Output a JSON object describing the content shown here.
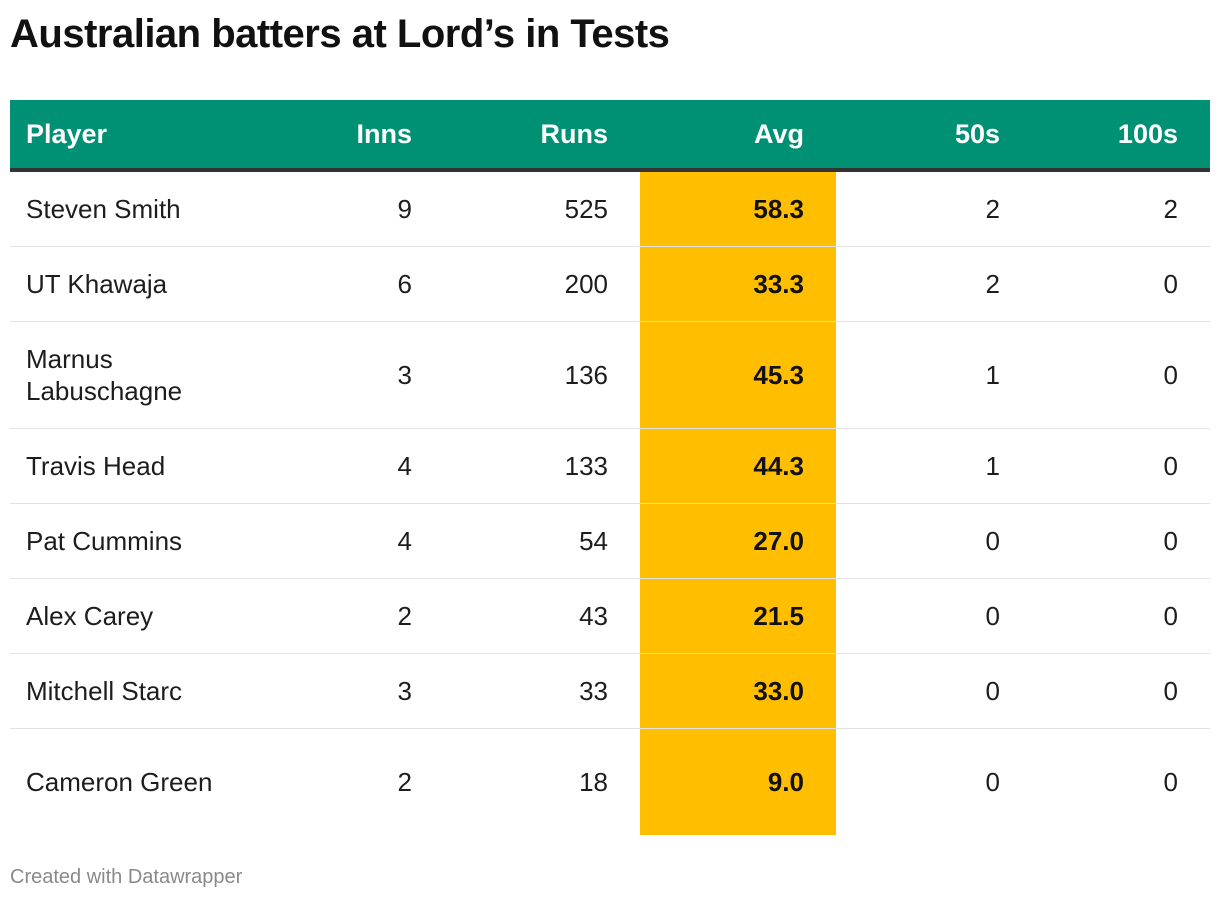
{
  "title": "Australian batters at Lord’s in Tests",
  "footer": "Created with Datawrapper",
  "colors": {
    "header_bg": "#009174",
    "highlight": "#FFBE00"
  },
  "chart_data": {
    "type": "table",
    "columns": [
      "Player",
      "Inns",
      "Runs",
      "Avg",
      "50s",
      "100s"
    ],
    "highlight_column": "Avg",
    "rows": [
      {
        "player": "Steven Smith",
        "inns": "9",
        "runs": "525",
        "avg": "58.3",
        "fifties": "2",
        "hundreds": "2"
      },
      {
        "player": "UT Khawaja",
        "inns": "6",
        "runs": "200",
        "avg": "33.3",
        "fifties": "2",
        "hundreds": "0"
      },
      {
        "player": "Marnus Labuschagne",
        "inns": "3",
        "runs": "136",
        "avg": "45.3",
        "fifties": "1",
        "hundreds": "0"
      },
      {
        "player": "Travis Head",
        "inns": "4",
        "runs": "133",
        "avg": "44.3",
        "fifties": "1",
        "hundreds": "0"
      },
      {
        "player": "Pat Cummins",
        "inns": "4",
        "runs": "54",
        "avg": "27.0",
        "fifties": "0",
        "hundreds": "0"
      },
      {
        "player": "Alex Carey",
        "inns": "2",
        "runs": "43",
        "avg": "21.5",
        "fifties": "0",
        "hundreds": "0"
      },
      {
        "player": "Mitchell Starc",
        "inns": "3",
        "runs": "33",
        "avg": "33.0",
        "fifties": "0",
        "hundreds": "0"
      },
      {
        "player": "Cameron Green",
        "inns": "2",
        "runs": "18",
        "avg": "9.0",
        "fifties": "0",
        "hundreds": "0"
      }
    ]
  }
}
